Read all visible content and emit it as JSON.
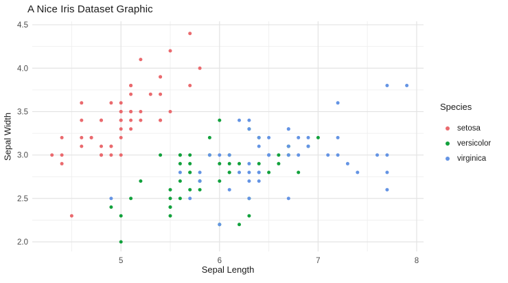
{
  "title": "A Nice Iris Dataset Graphic",
  "colors": {
    "background": "#FFFFFF",
    "panel_background": "#FFFFFF",
    "grid_major": "#E3E3E3",
    "grid_minor": "#F0F0F0",
    "tick_label_text": "#4D4D4D",
    "text": "#1A1A1A",
    "setosa": "#EA6A6E",
    "versicolor": "#12A13C",
    "virginica": "#6494E4"
  },
  "chart_data": {
    "type": "scatter",
    "title": "A Nice Iris Dataset Graphic",
    "xlabel": "Sepal Length",
    "ylabel": "Sepal Width",
    "legend_title": "Species",
    "legend_position": "right",
    "grid": true,
    "xlim": [
      4.1,
      8.07
    ],
    "ylim": [
      1.89,
      4.54
    ],
    "xticks": [
      {
        "v": 5,
        "label": "5"
      },
      {
        "v": 6,
        "label": "6"
      },
      {
        "v": 7,
        "label": "7"
      },
      {
        "v": 8,
        "label": "8"
      }
    ],
    "yticks": [
      {
        "v": 2.0,
        "label": "2.0"
      },
      {
        "v": 2.5,
        "label": "2.5"
      },
      {
        "v": 3.0,
        "label": "3.0"
      },
      {
        "v": 3.5,
        "label": "3.5"
      },
      {
        "v": 4.0,
        "label": "4.0"
      },
      {
        "v": 4.5,
        "label": "4.5"
      }
    ],
    "xminor": [
      4.5,
      5.5,
      6.5,
      7.5
    ],
    "yminor": [
      2.25,
      2.75,
      3.25,
      3.75,
      4.25
    ],
    "series": [
      {
        "name": "setosa",
        "color": "#EA6A6E",
        "x": [
          5.1,
          4.9,
          4.7,
          4.6,
          5.0,
          5.4,
          4.6,
          5.0,
          4.4,
          4.9,
          5.4,
          4.8,
          4.8,
          4.3,
          5.8,
          5.7,
          5.4,
          5.1,
          5.7,
          5.1,
          5.4,
          5.1,
          4.6,
          5.1,
          4.8,
          5.0,
          5.0,
          5.2,
          5.2,
          4.7,
          4.8,
          5.4,
          5.2,
          5.5,
          4.9,
          5.0,
          5.5,
          4.9,
          4.4,
          5.1,
          5.0,
          4.5,
          4.4,
          5.0,
          5.1,
          4.8,
          5.1,
          4.6,
          5.3,
          5.0
        ],
        "y": [
          3.5,
          3.0,
          3.2,
          3.1,
          3.6,
          3.9,
          3.4,
          3.4,
          2.9,
          3.1,
          3.7,
          3.4,
          3.0,
          3.0,
          4.0,
          4.4,
          3.9,
          3.5,
          3.8,
          3.8,
          3.4,
          3.7,
          3.6,
          3.3,
          3.4,
          3.0,
          3.4,
          3.5,
          3.4,
          3.2,
          3.1,
          3.4,
          4.1,
          4.2,
          3.1,
          3.2,
          3.5,
          3.6,
          3.0,
          3.4,
          3.5,
          2.3,
          3.2,
          3.5,
          3.8,
          3.0,
          3.8,
          3.2,
          3.7,
          3.3
        ]
      },
      {
        "name": "versicolor",
        "color": "#12A13C",
        "x": [
          7.0,
          6.4,
          6.9,
          5.5,
          6.5,
          5.7,
          6.3,
          4.9,
          6.6,
          5.2,
          5.0,
          5.9,
          6.0,
          6.1,
          5.6,
          6.7,
          5.6,
          5.8,
          6.2,
          5.6,
          5.9,
          6.1,
          6.3,
          6.1,
          6.4,
          6.6,
          6.8,
          6.7,
          6.0,
          5.7,
          5.5,
          5.5,
          5.8,
          6.0,
          5.4,
          6.0,
          6.7,
          6.3,
          5.6,
          5.5,
          5.5,
          6.1,
          5.8,
          5.0,
          5.6,
          5.7,
          5.7,
          6.2,
          5.1,
          5.7
        ],
        "y": [
          3.2,
          3.2,
          3.1,
          2.3,
          2.8,
          2.8,
          3.3,
          2.4,
          2.9,
          2.7,
          2.0,
          3.0,
          2.2,
          2.9,
          2.9,
          3.1,
          3.0,
          2.7,
          2.2,
          2.5,
          3.2,
          2.8,
          2.5,
          2.8,
          2.9,
          3.0,
          2.8,
          3.0,
          2.9,
          2.6,
          2.4,
          2.4,
          2.7,
          2.7,
          3.0,
          3.4,
          3.1,
          2.3,
          3.0,
          2.5,
          2.6,
          3.0,
          2.6,
          2.3,
          2.7,
          3.0,
          2.9,
          2.9,
          2.5,
          2.8
        ]
      },
      {
        "name": "virginica",
        "color": "#6494E4",
        "x": [
          6.3,
          5.8,
          7.1,
          6.3,
          6.5,
          7.6,
          4.9,
          7.3,
          6.7,
          7.2,
          6.5,
          6.4,
          6.8,
          5.7,
          5.8,
          6.4,
          6.5,
          7.7,
          7.7,
          6.0,
          6.9,
          5.6,
          7.7,
          6.3,
          6.7,
          7.2,
          6.2,
          6.1,
          6.4,
          7.2,
          7.4,
          7.9,
          6.4,
          6.3,
          6.1,
          7.7,
          6.3,
          6.4,
          6.0,
          6.9,
          6.7,
          6.9,
          5.8,
          6.8,
          6.7,
          6.7,
          6.3,
          6.5,
          6.2,
          5.9
        ],
        "y": [
          3.3,
          2.7,
          3.0,
          2.9,
          3.0,
          3.0,
          2.5,
          2.9,
          2.5,
          3.6,
          3.2,
          2.7,
          3.0,
          2.5,
          2.8,
          3.2,
          3.0,
          3.8,
          2.6,
          2.2,
          3.2,
          2.8,
          2.8,
          2.7,
          3.3,
          3.2,
          2.8,
          3.0,
          2.8,
          3.0,
          2.8,
          3.8,
          2.8,
          2.8,
          2.6,
          3.0,
          3.4,
          3.1,
          3.0,
          3.1,
          3.1,
          3.1,
          2.7,
          3.2,
          3.3,
          3.0,
          2.5,
          3.0,
          3.4,
          3.0
        ]
      }
    ]
  }
}
